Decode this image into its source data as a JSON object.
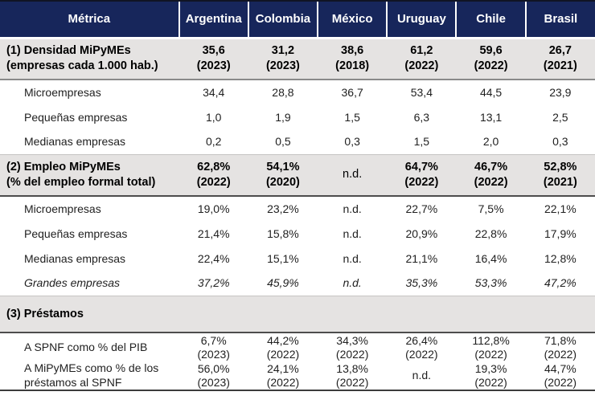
{
  "colors": {
    "header_bg": "#17265B",
    "header_text": "#FFFFFF",
    "section_bg": "#E5E3E2",
    "rule_dark": "#4D4D4D",
    "body_text": "#1F1F1F"
  },
  "header": {
    "metric": "Métrica",
    "countries": [
      "Argentina",
      "Colombia",
      "México",
      "Uruguay",
      "Chile",
      "Brasil"
    ]
  },
  "s1": {
    "label1": "(1) Densidad MiPyMEs",
    "label2": "(empresas cada 1.000 hab.)",
    "v": [
      "35,6",
      "31,2",
      "38,6",
      "61,2",
      "59,6",
      "26,7"
    ],
    "y": [
      "(2023)",
      "(2023)",
      "(2018)",
      "(2022)",
      "(2022)",
      "(2021)"
    ]
  },
  "s1_rows": [
    {
      "label": "Microempresas",
      "v": [
        "34,4",
        "28,8",
        "36,7",
        "53,4",
        "44,5",
        "23,9"
      ]
    },
    {
      "label": "Pequeñas empresas",
      "v": [
        "1,0",
        "1,9",
        "1,5",
        "6,3",
        "13,1",
        "2,5"
      ]
    },
    {
      "label": "Medianas empresas",
      "v": [
        "0,2",
        "0,5",
        "0,3",
        "1,5",
        "2,0",
        "0,3"
      ]
    }
  ],
  "s2": {
    "label1": "(2) Empleo MiPyMEs",
    "label2": "(% del empleo formal total)",
    "v": [
      "62,8%",
      "54,1%",
      "n.d.",
      "64,7%",
      "46,7%",
      "52,8%"
    ],
    "y": [
      "(2022)",
      "(2020)",
      "",
      "(2022)",
      "(2022)",
      "(2021)"
    ]
  },
  "s2_rows": [
    {
      "label": "Microempresas",
      "v": [
        "19,0%",
        "23,2%",
        "n.d.",
        "22,7%",
        "7,5%",
        "22,1%"
      ]
    },
    {
      "label": "Pequeñas empresas",
      "v": [
        "21,4%",
        "15,8%",
        "n.d.",
        "20,9%",
        "22,8%",
        "17,9%"
      ]
    },
    {
      "label": "Medianas empresas",
      "v": [
        "22,4%",
        "15,1%",
        "n.d.",
        "21,1%",
        "16,4%",
        "12,8%"
      ]
    },
    {
      "label": "Grandes empresas",
      "v": [
        "37,2%",
        "45,9%",
        "n.d.",
        "35,3%",
        "53,3%",
        "47,2%"
      ]
    }
  ],
  "s3": {
    "label": "(3) Préstamos"
  },
  "s3_rows": [
    {
      "label1": "A SPNF como % del PIB",
      "label2": "",
      "v": [
        "6,7%",
        "44,2%",
        "34,3%",
        "26,4%",
        "112,8%",
        "71,8%"
      ],
      "y": [
        "(2023)",
        "(2022)",
        "(2022)",
        "(2022)",
        "(2022)",
        "(2022)"
      ]
    },
    {
      "label1": "A MiPyMEs como % de los",
      "label2": "préstamos al SPNF",
      "v": [
        "56,0%",
        "24,1%",
        "13,8%",
        "n.d.",
        "19,3%",
        "44,7%"
      ],
      "y": [
        "(2023)",
        "(2022)",
        "(2022)",
        "",
        "(2022)",
        "(2022)"
      ]
    }
  ]
}
